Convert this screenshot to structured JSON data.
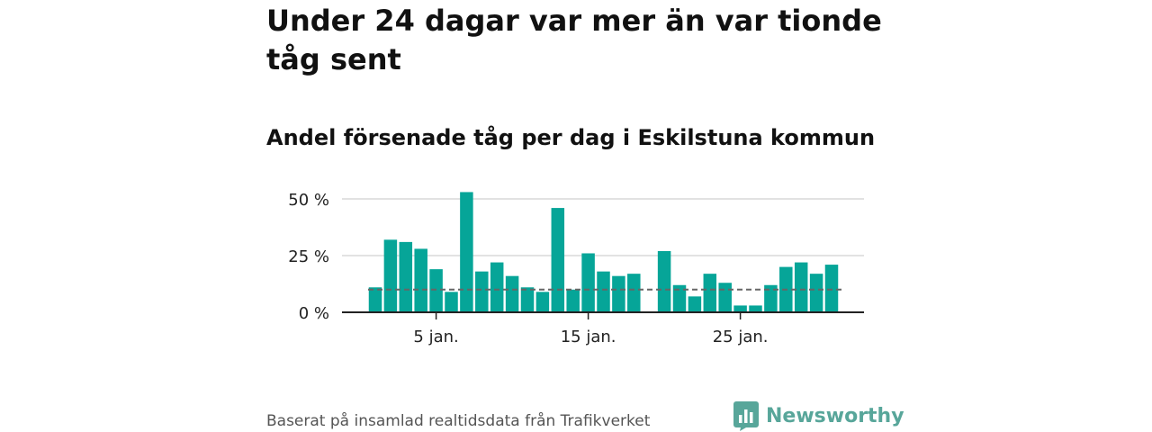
{
  "headline": "Under 24 dagar var mer än var tionde tåg sent",
  "chart_data": {
    "type": "bar",
    "title": "Andel försenade tåg per dag i Eskilstuna kommun",
    "xlabel": "",
    "ylabel": "",
    "ylim": [
      0,
      50
    ],
    "yticks": [
      {
        "value": 0,
        "label": "0 %"
      },
      {
        "value": 25,
        "label": "25 %"
      },
      {
        "value": 50,
        "label": "50 %"
      }
    ],
    "xticks": [
      {
        "day": 5,
        "label": "5 jan."
      },
      {
        "day": 15,
        "label": "15 jan."
      },
      {
        "day": 25,
        "label": "25 jan."
      }
    ],
    "x": [
      1,
      2,
      3,
      4,
      5,
      6,
      7,
      8,
      9,
      10,
      11,
      12,
      13,
      14,
      15,
      16,
      17,
      18,
      19,
      20,
      21,
      22,
      23,
      24,
      25,
      26,
      27,
      28,
      29,
      30,
      31
    ],
    "values": [
      11,
      32,
      31,
      28,
      19,
      9,
      53,
      18,
      22,
      16,
      11,
      9,
      46,
      10,
      26,
      18,
      16,
      17,
      0,
      27,
      12,
      7,
      17,
      13,
      3,
      3,
      12,
      20,
      22,
      17,
      21
    ],
    "reference_line": 10,
    "grid": true,
    "legend": "none",
    "colors": {
      "bar": "#06a598",
      "reference": "#666666",
      "grid": "#d9d9d9",
      "axis": "#222222"
    }
  },
  "source": "Baserat på insamlad realtidsdata från Trafikverket",
  "brand": {
    "name": "Newsworthy",
    "icon": "newsworthy-logo-icon",
    "color": "#58a69a"
  }
}
